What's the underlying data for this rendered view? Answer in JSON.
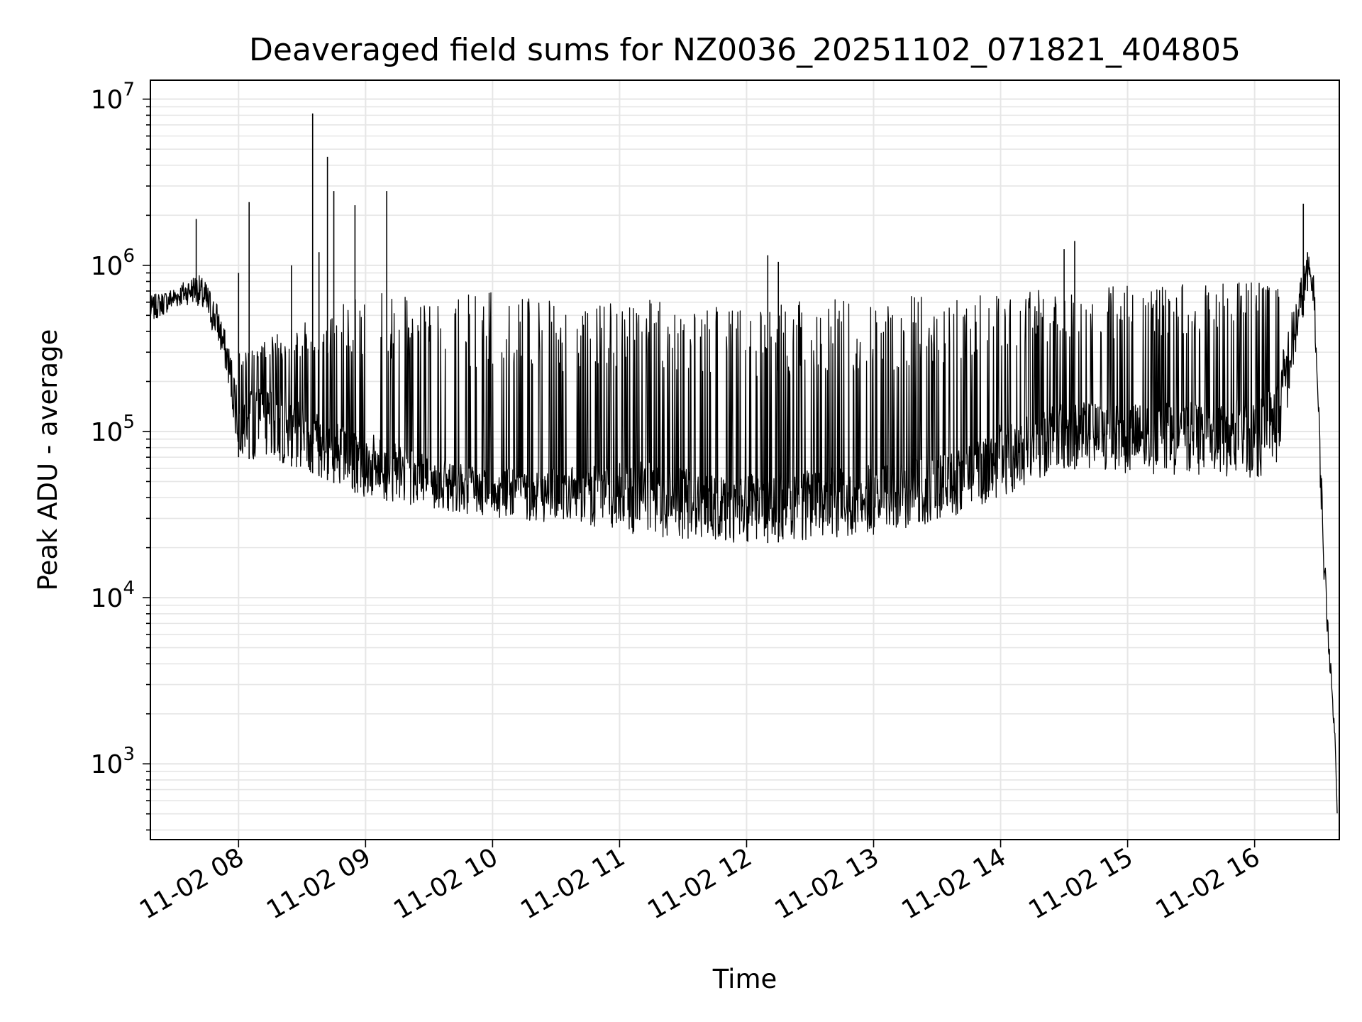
{
  "chart_data": {
    "type": "line",
    "title": "Deaveraged field sums for NZ0036_20251102_071821_404805",
    "xlabel": "Time",
    "ylabel": "Peak ADU - average",
    "yscale": "log",
    "ylim": [
      350,
      13000000
    ],
    "xlim": [
      "2025-11-02 07:18:21",
      "2025-11-02 16:40:00"
    ],
    "grid": true,
    "line_color": "#000000",
    "grid_color": "#e6e6e6",
    "x_tick_labels": [
      "11-02 08",
      "11-02 09",
      "11-02 10",
      "11-02 11",
      "11-02 12",
      "11-02 13",
      "11-02 14",
      "11-02 15",
      "11-02 16"
    ],
    "x_tick_times": [
      "2025-11-02 08:00",
      "2025-11-02 09:00",
      "2025-11-02 10:00",
      "2025-11-02 11:00",
      "2025-11-02 12:00",
      "2025-11-02 13:00",
      "2025-11-02 14:00",
      "2025-11-02 15:00",
      "2025-11-02 16:00"
    ],
    "y_tick_labels": [
      {
        "base": "10",
        "exp": "3",
        "value": 1000
      },
      {
        "base": "10",
        "exp": "4",
        "value": 10000
      },
      {
        "base": "10",
        "exp": "5",
        "value": 100000
      },
      {
        "base": "10",
        "exp": "6",
        "value": 1000000
      },
      {
        "base": "10",
        "exp": "7",
        "value": 10000000
      }
    ],
    "series": [
      {
        "envelope": [
          {
            "time": "07:18",
            "low": 450000,
            "high": 650000
          },
          {
            "time": "07:30",
            "low": 550000,
            "high": 750000
          },
          {
            "time": "07:40",
            "low": 600000,
            "high": 900000
          },
          {
            "time": "07:45",
            "low": 450000,
            "high": 800000
          },
          {
            "time": "07:50",
            "low": 350000,
            "high": 600000
          },
          {
            "time": "07:55",
            "low": 200000,
            "high": 350000
          },
          {
            "time": "08:00",
            "low": 70000,
            "high": 200000
          },
          {
            "time": "08:30",
            "low": 60000,
            "high": 150000
          },
          {
            "time": "09:00",
            "low": 40000,
            "high": 100000
          },
          {
            "time": "09:30",
            "low": 35000,
            "high": 70000
          },
          {
            "time": "10:00",
            "low": 30000,
            "high": 60000
          },
          {
            "time": "10:30",
            "low": 28000,
            "high": 60000
          },
          {
            "time": "11:00",
            "low": 25000,
            "high": 70000
          },
          {
            "time": "11:30",
            "low": 22000,
            "high": 60000
          },
          {
            "time": "12:00",
            "low": 21000,
            "high": 55000
          },
          {
            "time": "12:30",
            "low": 22000,
            "high": 60000
          },
          {
            "time": "13:00",
            "low": 24000,
            "high": 65000
          },
          {
            "time": "13:30",
            "low": 28000,
            "high": 70000
          },
          {
            "time": "14:00",
            "low": 40000,
            "high": 110000
          },
          {
            "time": "14:30",
            "low": 60000,
            "high": 150000
          },
          {
            "time": "15:00",
            "low": 55000,
            "high": 150000
          },
          {
            "time": "15:30",
            "low": 55000,
            "high": 150000
          },
          {
            "time": "16:00",
            "low": 50000,
            "high": 160000
          },
          {
            "time": "16:10",
            "low": 60000,
            "high": 200000
          },
          {
            "time": "16:15",
            "low": 120000,
            "high": 400000
          },
          {
            "time": "16:20",
            "low": 300000,
            "high": 700000
          },
          {
            "time": "16:25",
            "low": 700000,
            "high": 1200000
          },
          {
            "time": "16:28",
            "low": 600000,
            "high": 900000
          },
          {
            "time": "16:30",
            "low": 100000,
            "high": 200000
          },
          {
            "time": "16:33",
            "low": 10000,
            "high": 20000
          },
          {
            "time": "16:36",
            "low": 3000,
            "high": 4000
          },
          {
            "time": "16:38",
            "low": 1300,
            "high": 1500
          },
          {
            "time": "16:39",
            "low": 500,
            "high": 600
          }
        ],
        "oscillation_band_high": [
          {
            "time": "08:00",
            "value": 300000
          },
          {
            "time": "09:00",
            "value": 700000
          },
          {
            "time": "10:00",
            "value": 700000
          },
          {
            "time": "11:00",
            "value": 650000
          },
          {
            "time": "12:00",
            "value": 600000
          },
          {
            "time": "13:00",
            "value": 650000
          },
          {
            "time": "14:00",
            "value": 700000
          },
          {
            "time": "15:00",
            "value": 750000
          },
          {
            "time": "16:00",
            "value": 800000
          }
        ],
        "spikes": [
          {
            "time": "07:40",
            "value": 1900000
          },
          {
            "time": "08:00",
            "value": 900000
          },
          {
            "time": "08:05",
            "value": 2400000
          },
          {
            "time": "08:25",
            "value": 1000000
          },
          {
            "time": "08:35",
            "value": 8200000
          },
          {
            "time": "08:38",
            "value": 1200000
          },
          {
            "time": "08:42",
            "value": 4500000
          },
          {
            "time": "08:45",
            "value": 2800000
          },
          {
            "time": "08:55",
            "value": 2300000
          },
          {
            "time": "09:10",
            "value": 2800000
          },
          {
            "time": "12:10",
            "value": 1150000
          },
          {
            "time": "12:15",
            "value": 1050000
          },
          {
            "time": "14:30",
            "value": 1250000
          },
          {
            "time": "14:35",
            "value": 1400000
          },
          {
            "time": "16:23",
            "value": 2350000
          },
          {
            "time": "16:25",
            "value": 1200000
          }
        ]
      }
    ]
  }
}
